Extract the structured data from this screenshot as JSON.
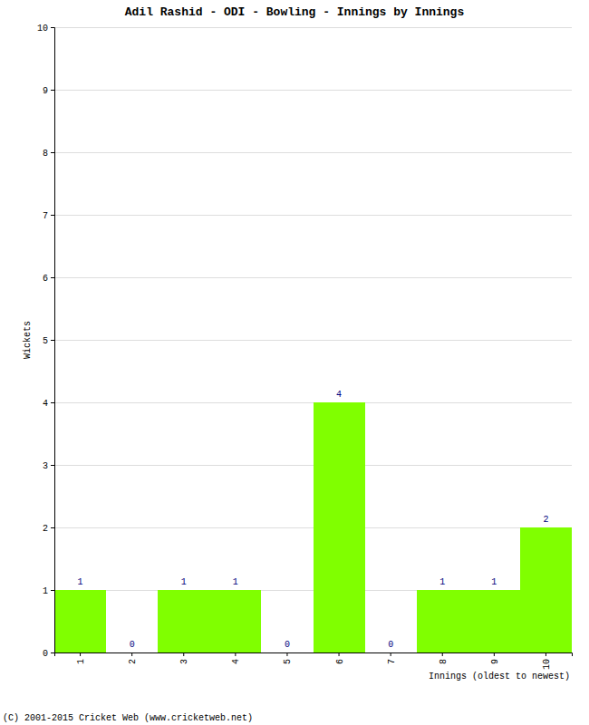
{
  "chart_data": {
    "type": "bar",
    "title": "Adil Rashid - ODI - Bowling - Innings by Innings",
    "x_label": "Innings (oldest to newest)",
    "y_label": "Wickets",
    "annotations": [
      "(C) 2001-2015 Cricket Web (www.cricketweb.net)"
    ],
    "categories": [
      "1",
      "2",
      "3",
      "4",
      "5",
      "6",
      "7",
      "8",
      "9",
      "10"
    ],
    "values": [
      1,
      0,
      1,
      1,
      0,
      4,
      0,
      1,
      1,
      2
    ],
    "color": "#80ff00",
    "ylim": [
      0,
      10
    ],
    "yticks": [
      0,
      1,
      2,
      3,
      4,
      5,
      6,
      7,
      8,
      9,
      10
    ],
    "grid": true,
    "data_labels": true
  }
}
